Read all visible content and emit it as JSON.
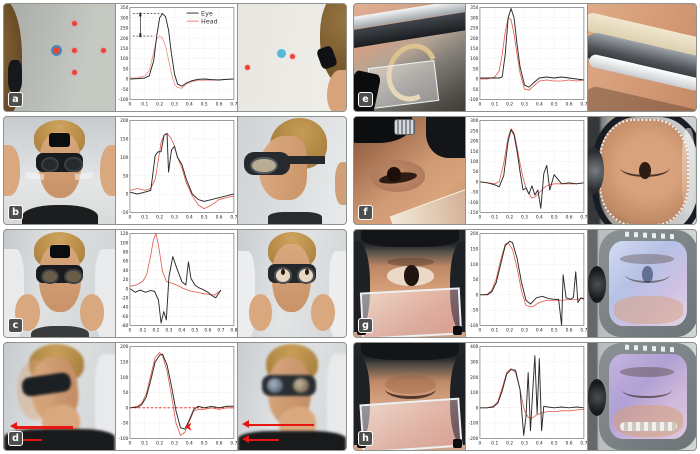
{
  "panels": [
    {
      "label": "a"
    },
    {
      "label": "b"
    },
    {
      "label": "c"
    },
    {
      "label": "d"
    },
    {
      "label": "e"
    },
    {
      "label": "f"
    },
    {
      "label": "g"
    },
    {
      "label": "h"
    }
  ],
  "legend": {
    "eye": "Eye",
    "head": "Head"
  },
  "colors": {
    "eye_line": "#2a2a2a",
    "head_line": "#e2574b",
    "legend_eye": "#4a4a4a",
    "legend_head": "#ef8d80",
    "grid": "#bdbdbd",
    "frame": "#777777",
    "tick_text": "#1a1a1a",
    "annotation_red": "#e81610",
    "laser_dot": "#ee4438",
    "target_blue": "#56b7d8"
  },
  "chart_data": [
    {
      "type": "line",
      "panel": "a",
      "xlim": [
        0,
        0.7
      ],
      "ylim": [
        -100,
        350
      ],
      "xticks": [
        0,
        0.1,
        0.2,
        0.3,
        0.4,
        0.5,
        0.6,
        0.7
      ],
      "yticks": [
        -100,
        -50,
        0,
        50,
        100,
        150,
        200,
        250,
        300,
        350
      ],
      "show_legend": true,
      "zero_line": false,
      "series": [
        {
          "name": "Eye",
          "color": "#2a2a2a",
          "x": [
            0,
            0.05,
            0.1,
            0.13,
            0.16,
            0.18,
            0.2,
            0.22,
            0.24,
            0.26,
            0.28,
            0.3,
            0.32,
            0.35,
            0.38,
            0.42,
            0.46,
            0.5,
            0.55,
            0.6,
            0.65,
            0.7
          ],
          "y": [
            0,
            2,
            5,
            15,
            90,
            210,
            300,
            320,
            305,
            240,
            120,
            25,
            -25,
            -35,
            -20,
            -8,
            -2,
            0,
            -3,
            -5,
            -2,
            0
          ]
        },
        {
          "name": "Head",
          "color": "#ef8d80",
          "x": [
            0,
            0.05,
            0.1,
            0.13,
            0.16,
            0.18,
            0.2,
            0.22,
            0.24,
            0.26,
            0.28,
            0.3,
            0.32,
            0.35,
            0.38,
            0.42,
            0.46,
            0.5,
            0.55,
            0.6,
            0.65,
            0.7
          ],
          "y": [
            5,
            6,
            15,
            40,
            130,
            195,
            210,
            200,
            160,
            95,
            25,
            -25,
            -42,
            -45,
            -25,
            -12,
            -8,
            -6,
            -6,
            -4,
            -2,
            0
          ]
        }
      ],
      "annotations": [
        {
          "type": "peak_diff",
          "x": 0.07,
          "y_high": 320,
          "y_low": 210
        }
      ]
    },
    {
      "type": "line",
      "panel": "b",
      "xlim": [
        0,
        0.7
      ],
      "ylim": [
        -50,
        200
      ],
      "xticks": [
        0,
        0.1,
        0.2,
        0.3,
        0.4,
        0.5,
        0.6,
        0.7
      ],
      "yticks": [
        -50,
        0,
        50,
        100,
        150,
        200
      ],
      "show_legend": false,
      "zero_line": false,
      "series": [
        {
          "name": "Eye",
          "color": "#2a2a2a",
          "x": [
            0,
            0.05,
            0.1,
            0.14,
            0.17,
            0.19,
            0.21,
            0.23,
            0.25,
            0.26,
            0.28,
            0.3,
            0.32,
            0.35,
            0.38,
            0.42,
            0.46,
            0.5,
            0.55,
            0.6,
            0.65,
            0.7
          ],
          "y": [
            5,
            0,
            5,
            10,
            105,
            115,
            115,
            160,
            165,
            60,
            120,
            130,
            100,
            80,
            40,
            0,
            -15,
            -20,
            -15,
            -10,
            -5,
            0
          ]
        },
        {
          "name": "Head",
          "color": "#e2574b",
          "x": [
            0,
            0.05,
            0.1,
            0.14,
            0.17,
            0.19,
            0.21,
            0.23,
            0.25,
            0.26,
            0.28,
            0.3,
            0.32,
            0.35,
            0.38,
            0.42,
            0.46,
            0.5,
            0.55,
            0.6,
            0.65,
            0.7
          ],
          "y": [
            10,
            15,
            10,
            15,
            40,
            90,
            140,
            160,
            165,
            160,
            150,
            130,
            100,
            70,
            30,
            -5,
            -30,
            -40,
            -30,
            -15,
            -10,
            -5
          ]
        }
      ],
      "annotations": []
    },
    {
      "type": "line",
      "panel": "c",
      "xlim": [
        0,
        0.8
      ],
      "ylim": [
        -80,
        120
      ],
      "xticks": [
        0,
        0.1,
        0.2,
        0.3,
        0.4,
        0.5,
        0.6,
        0.7,
        0.8
      ],
      "yticks": [
        -80,
        -60,
        -40,
        -20,
        0,
        20,
        40,
        60,
        80,
        100,
        120
      ],
      "show_legend": false,
      "zero_line": false,
      "series": [
        {
          "name": "Eye",
          "color": "#2a2a2a",
          "x": [
            0,
            0.04,
            0.08,
            0.12,
            0.16,
            0.19,
            0.22,
            0.24,
            0.26,
            0.28,
            0.3,
            0.33,
            0.36,
            0.4,
            0.43,
            0.45,
            0.47,
            0.5,
            0.53,
            0.57,
            0.6,
            0.63,
            0.66,
            0.7
          ],
          "y": [
            0,
            -8,
            -3,
            -8,
            -4,
            -6,
            -25,
            -75,
            -50,
            -68,
            25,
            70,
            45,
            15,
            8,
            58,
            22,
            8,
            2,
            -3,
            -8,
            -15,
            -20,
            -3
          ]
        },
        {
          "name": "Head",
          "color": "#e2574b",
          "x": [
            0,
            0.05,
            0.1,
            0.13,
            0.16,
            0.18,
            0.2,
            0.22,
            0.25,
            0.28,
            0.32,
            0.36,
            0.4,
            0.45,
            0.5,
            0.55,
            0.6,
            0.65,
            0.7
          ],
          "y": [
            5,
            8,
            16,
            32,
            72,
            105,
            120,
            95,
            38,
            16,
            12,
            8,
            2,
            -4,
            -7,
            -10,
            -12,
            -14,
            -4
          ]
        }
      ],
      "annotations": []
    },
    {
      "type": "line",
      "panel": "d",
      "xlim": [
        0,
        0.7
      ],
      "ylim": [
        -100,
        200
      ],
      "xticks": [
        0,
        0.1,
        0.2,
        0.3,
        0.4,
        0.5,
        0.6,
        0.7
      ],
      "yticks": [
        -100,
        -50,
        0,
        50,
        100,
        150,
        200
      ],
      "show_legend": false,
      "zero_line": true,
      "series": [
        {
          "name": "Eye",
          "color": "#2a2a2a",
          "x": [
            0,
            0.05,
            0.08,
            0.11,
            0.14,
            0.17,
            0.2,
            0.22,
            0.25,
            0.28,
            0.31,
            0.34,
            0.37,
            0.4,
            0.43,
            0.46,
            0.5,
            0.55,
            0.6,
            0.65,
            0.7
          ],
          "y": [
            0,
            2,
            10,
            35,
            90,
            150,
            172,
            175,
            140,
            70,
            -10,
            -65,
            -70,
            -40,
            -5,
            5,
            0,
            5,
            0,
            5,
            5
          ]
        },
        {
          "name": "Head",
          "color": "#e2574b",
          "x": [
            0,
            0.05,
            0.08,
            0.11,
            0.14,
            0.17,
            0.2,
            0.22,
            0.25,
            0.28,
            0.31,
            0.34,
            0.37,
            0.4,
            0.43,
            0.46,
            0.5,
            0.55,
            0.6,
            0.65,
            0.7
          ],
          "y": [
            0,
            5,
            15,
            45,
            105,
            165,
            180,
            170,
            120,
            40,
            -50,
            -90,
            -80,
            -45,
            -10,
            -5,
            -5,
            0,
            -5,
            0,
            0
          ]
        }
      ],
      "annotations": [
        {
          "type": "arrow_left",
          "x": 0.37,
          "y": -62
        }
      ]
    },
    {
      "type": "line",
      "panel": "e",
      "xlim": [
        0,
        0.7
      ],
      "ylim": [
        -100,
        350
      ],
      "xticks": [
        0,
        0.1,
        0.2,
        0.3,
        0.4,
        0.5,
        0.6,
        0.7
      ],
      "yticks": [
        -100,
        -50,
        0,
        50,
        100,
        150,
        200,
        250,
        300,
        350
      ],
      "show_legend": false,
      "zero_line": false,
      "series": [
        {
          "name": "Eye",
          "color": "#2a2a2a",
          "x": [
            0,
            0.05,
            0.1,
            0.13,
            0.15,
            0.17,
            0.19,
            0.21,
            0.23,
            0.25,
            0.27,
            0.3,
            0.33,
            0.36,
            0.4,
            0.45,
            0.5,
            0.55,
            0.6,
            0.65,
            0.7
          ],
          "y": [
            5,
            5,
            5,
            5,
            10,
            120,
            300,
            345,
            300,
            170,
            60,
            -30,
            -40,
            -20,
            5,
            10,
            5,
            10,
            5,
            0,
            -5
          ]
        },
        {
          "name": "Head",
          "color": "#e2574b",
          "x": [
            0,
            0.05,
            0.1,
            0.13,
            0.15,
            0.17,
            0.19,
            0.21,
            0.23,
            0.25,
            0.27,
            0.3,
            0.33,
            0.36,
            0.4,
            0.45,
            0.5,
            0.55,
            0.6,
            0.65,
            0.7
          ],
          "y": [
            0,
            0,
            10,
            40,
            120,
            230,
            300,
            290,
            220,
            120,
            30,
            -50,
            -55,
            -35,
            -10,
            -5,
            -10,
            -10,
            -5,
            -10,
            -5
          ]
        }
      ],
      "annotations": []
    },
    {
      "type": "line",
      "panel": "f",
      "xlim": [
        0,
        0.7
      ],
      "ylim": [
        -150,
        300
      ],
      "xticks": [
        0,
        0.1,
        0.2,
        0.3,
        0.4,
        0.5,
        0.6,
        0.7
      ],
      "yticks": [
        -150,
        -100,
        -50,
        0,
        50,
        100,
        150,
        200,
        250,
        300
      ],
      "show_legend": false,
      "zero_line": false,
      "series": [
        {
          "name": "Eye",
          "color": "#2a2a2a",
          "x": [
            0,
            0.05,
            0.1,
            0.13,
            0.16,
            0.19,
            0.21,
            0.23,
            0.25,
            0.27,
            0.29,
            0.31,
            0.33,
            0.35,
            0.37,
            0.39,
            0.41,
            0.43,
            0.45,
            0.47,
            0.5,
            0.55,
            0.6,
            0.65,
            0.7
          ],
          "y": [
            0,
            -5,
            -15,
            -25,
            30,
            200,
            255,
            230,
            150,
            50,
            -40,
            -30,
            -60,
            -20,
            -65,
            -40,
            -130,
            40,
            80,
            -40,
            35,
            -10,
            -5,
            -10,
            -5
          ]
        },
        {
          "name": "Head",
          "color": "#e2574b",
          "x": [
            0,
            0.05,
            0.1,
            0.13,
            0.16,
            0.19,
            0.21,
            0.23,
            0.25,
            0.27,
            0.29,
            0.31,
            0.33,
            0.35,
            0.37,
            0.39,
            0.41,
            0.43,
            0.45,
            0.47,
            0.5,
            0.55,
            0.6,
            0.65,
            0.7
          ],
          "y": [
            0,
            -5,
            -10,
            0,
            90,
            220,
            260,
            240,
            170,
            90,
            20,
            -30,
            -60,
            -80,
            -75,
            -60,
            -45,
            -30,
            -20,
            -15,
            -10,
            -10,
            -10,
            -10,
            -5
          ]
        }
      ],
      "annotations": []
    },
    {
      "type": "line",
      "panel": "g",
      "xlim": [
        0,
        0.7
      ],
      "ylim": [
        -100,
        200
      ],
      "xticks": [
        0,
        0.1,
        0.2,
        0.3,
        0.4,
        0.5,
        0.6,
        0.7
      ],
      "yticks": [
        -100,
        -50,
        0,
        50,
        100,
        150,
        200
      ],
      "show_legend": false,
      "zero_line": false,
      "series": [
        {
          "name": "Eye",
          "color": "#2a2a2a",
          "x": [
            0,
            0.05,
            0.08,
            0.11,
            0.14,
            0.17,
            0.2,
            0.22,
            0.25,
            0.28,
            0.31,
            0.34,
            0.38,
            0.42,
            0.46,
            0.5,
            0.53,
            0.55,
            0.56,
            0.58,
            0.61,
            0.63,
            0.645,
            0.66,
            0.68,
            0.7
          ],
          "y": [
            0,
            0,
            10,
            40,
            100,
            160,
            175,
            170,
            120,
            40,
            -18,
            -30,
            -10,
            -5,
            -12,
            -15,
            -15,
            -100,
            65,
            -10,
            -15,
            -8,
            75,
            -25,
            -10,
            -15
          ]
        },
        {
          "name": "Head",
          "color": "#e2574b",
          "x": [
            0,
            0.05,
            0.08,
            0.11,
            0.14,
            0.17,
            0.19,
            0.22,
            0.25,
            0.28,
            0.31,
            0.35,
            0.4,
            0.45,
            0.5,
            0.55,
            0.6,
            0.65,
            0.7
          ],
          "y": [
            0,
            2,
            15,
            52,
            115,
            165,
            170,
            148,
            88,
            12,
            -35,
            -40,
            -25,
            -18,
            -20,
            -18,
            -16,
            -15,
            -10
          ]
        }
      ],
      "annotations": []
    },
    {
      "type": "line",
      "panel": "h",
      "xlim": [
        0,
        0.7
      ],
      "ylim": [
        -200,
        400
      ],
      "xticks": [
        0,
        0.1,
        0.2,
        0.3,
        0.4,
        0.5,
        0.6,
        0.7
      ],
      "yticks": [
        -200,
        -100,
        0,
        100,
        200,
        300,
        400
      ],
      "show_legend": false,
      "zero_line": false,
      "series": [
        {
          "name": "Eye",
          "color": "#2a2a2a",
          "x": [
            0,
            0.05,
            0.09,
            0.12,
            0.15,
            0.18,
            0.21,
            0.24,
            0.27,
            0.295,
            0.31,
            0.325,
            0.34,
            0.355,
            0.37,
            0.385,
            0.4,
            0.415,
            0.43,
            0.46,
            0.5,
            0.55,
            0.6,
            0.65,
            0.7
          ],
          "y": [
            0,
            0,
            5,
            30,
            110,
            220,
            250,
            245,
            120,
            -180,
            -60,
            230,
            -150,
            100,
            340,
            -40,
            320,
            -150,
            10,
            5,
            0,
            5,
            0,
            5,
            0
          ]
        },
        {
          "name": "Head",
          "color": "#e2574b",
          "x": [
            0,
            0.05,
            0.09,
            0.12,
            0.15,
            0.18,
            0.21,
            0.24,
            0.27,
            0.295,
            0.31,
            0.325,
            0.34,
            0.355,
            0.37,
            0.385,
            0.4,
            0.415,
            0.43,
            0.46,
            0.5,
            0.55,
            0.6,
            0.65,
            0.7
          ],
          "y": [
            0,
            0,
            10,
            40,
            130,
            230,
            255,
            230,
            120,
            0,
            -40,
            -60,
            -70,
            -65,
            -55,
            -45,
            -40,
            -35,
            -30,
            -25,
            -25,
            -20,
            -20,
            -15,
            -10
          ]
        }
      ],
      "annotations": []
    }
  ]
}
